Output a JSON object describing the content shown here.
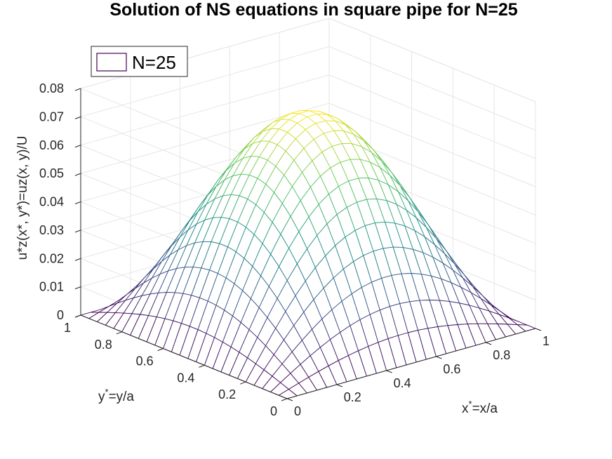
{
  "chart_data": {
    "type": "surface",
    "title": "Solution of NS equations in square pipe for N=25",
    "xlabel": {
      "base": "x",
      "sup": "*",
      "rest": "=x/a"
    },
    "ylabel": {
      "base": "y",
      "sup": "*",
      "rest": "=y/a"
    },
    "zlabel": "u*z(x*, y*)=uz(x, y)/U",
    "xlim": [
      0,
      1
    ],
    "ylim": [
      0,
      1
    ],
    "zlim": [
      0,
      0.08
    ],
    "x_ticks": [
      "0",
      "0.2",
      "0.4",
      "0.6",
      "0.8",
      "1"
    ],
    "x_tick_values": [
      0,
      0.2,
      0.4,
      0.6,
      0.8,
      1
    ],
    "y_ticks": [
      "0",
      "0.2",
      "0.4",
      "0.6",
      "0.8",
      "1"
    ],
    "y_tick_values": [
      0,
      0.2,
      0.4,
      0.6,
      0.8,
      1
    ],
    "z_ticks": [
      "0",
      "0.01",
      "0.02",
      "0.03",
      "0.04",
      "0.05",
      "0.06",
      "0.07",
      "0.08"
    ],
    "z_tick_values": [
      0,
      0.01,
      0.02,
      0.03,
      0.04,
      0.05,
      0.06,
      0.07,
      0.08
    ],
    "grid": true,
    "colormap": "viridis",
    "colormap_stops": [
      "#440154",
      "#3b528b",
      "#21918c",
      "#5ec962",
      "#fde725"
    ],
    "mesh_points": 26,
    "peak_value": 0.0737,
    "series": [
      {
        "name": "N=25"
      }
    ],
    "legend": {
      "location": "top-left",
      "entry_color": "#440154"
    }
  }
}
